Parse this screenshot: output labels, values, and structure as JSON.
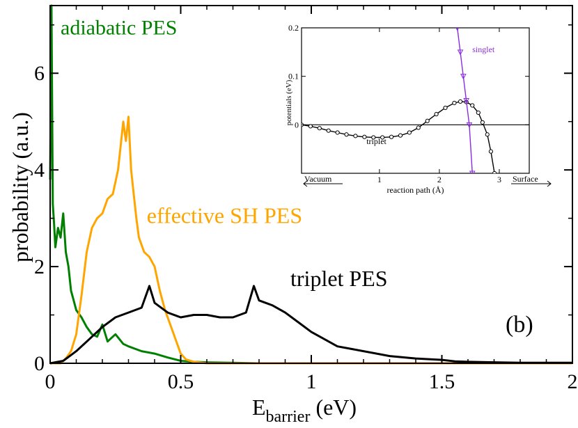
{
  "chart_data": [
    {
      "type": "line",
      "panel_label": "(b)",
      "xlabel_main": "E",
      "xlabel_sub": "barrier",
      "xlabel_unit": "(eV)",
      "ylabel": "probability (a.u.)",
      "xlim": [
        0,
        2
      ],
      "ylim": [
        0,
        7.4
      ],
      "xticks": [
        0,
        0.5,
        1,
        1.5,
        2
      ],
      "xtick_labels": [
        "0",
        "0.5",
        "1",
        "1.5",
        "2"
      ],
      "yticks": [
        0,
        2,
        4,
        6
      ],
      "ytick_labels": [
        "0",
        "2",
        "4",
        "6"
      ],
      "series": [
        {
          "name": "adiabatic PES",
          "color": "#008000",
          "x": [
            0.0,
            0.005,
            0.01,
            0.015,
            0.02,
            0.03,
            0.04,
            0.05,
            0.06,
            0.07,
            0.08,
            0.09,
            0.1,
            0.12,
            0.14,
            0.16,
            0.18,
            0.2,
            0.22,
            0.25,
            0.28,
            0.3,
            0.35,
            0.4,
            0.45,
            0.5,
            0.55,
            0.6,
            0.7,
            0.8,
            1.0,
            1.5,
            2.0
          ],
          "y": [
            3.8,
            7.4,
            3.3,
            2.9,
            2.4,
            2.8,
            2.6,
            3.1,
            2.3,
            2.0,
            1.5,
            1.3,
            1.1,
            0.95,
            0.75,
            0.6,
            0.55,
            0.8,
            0.45,
            0.6,
            0.4,
            0.35,
            0.25,
            0.2,
            0.12,
            0.05,
            0.03,
            0.02,
            0.01,
            0.0,
            0.0,
            0.0,
            0.0
          ]
        },
        {
          "name": "effective SH PES",
          "color": "#ffa500",
          "x": [
            0.0,
            0.04,
            0.06,
            0.08,
            0.1,
            0.12,
            0.14,
            0.16,
            0.18,
            0.2,
            0.22,
            0.24,
            0.26,
            0.27,
            0.28,
            0.29,
            0.3,
            0.31,
            0.32,
            0.33,
            0.34,
            0.36,
            0.38,
            0.4,
            0.42,
            0.44,
            0.46,
            0.48,
            0.5,
            0.52,
            0.55,
            0.6,
            2.0
          ],
          "y": [
            0.0,
            0.0,
            0.1,
            0.25,
            0.6,
            1.4,
            2.3,
            2.8,
            3.0,
            3.1,
            3.4,
            3.5,
            4.0,
            4.5,
            5.0,
            4.6,
            5.1,
            4.0,
            3.5,
            3.0,
            2.6,
            2.3,
            2.2,
            2.0,
            1.5,
            1.1,
            0.8,
            0.5,
            0.2,
            0.08,
            0.03,
            0.0,
            0.0
          ]
        },
        {
          "name": "triplet PES",
          "color": "#000000",
          "x": [
            0.0,
            0.05,
            0.1,
            0.15,
            0.2,
            0.25,
            0.3,
            0.35,
            0.38,
            0.4,
            0.45,
            0.5,
            0.55,
            0.6,
            0.65,
            0.7,
            0.75,
            0.78,
            0.8,
            0.85,
            0.9,
            0.95,
            1.0,
            1.05,
            1.1,
            1.2,
            1.3,
            1.4,
            1.5,
            1.55,
            1.6,
            1.7,
            1.8,
            2.0
          ],
          "y": [
            0.0,
            0.05,
            0.25,
            0.5,
            0.75,
            0.95,
            1.05,
            1.15,
            1.6,
            1.25,
            1.05,
            0.95,
            1.0,
            1.0,
            0.95,
            0.95,
            1.05,
            1.6,
            1.3,
            1.2,
            1.05,
            0.85,
            0.65,
            0.5,
            0.35,
            0.25,
            0.15,
            0.1,
            0.07,
            0.04,
            0.03,
            0.02,
            0.01,
            0.01
          ]
        }
      ],
      "annotations": [
        {
          "text": "adiabatic PES",
          "color": "#008000",
          "x": 0.04,
          "y": 6.8
        },
        {
          "text": "effective SH PES",
          "color": "#ffa500",
          "x": 0.37,
          "y": 2.9
        },
        {
          "text": "triplet PES",
          "color": "#000000",
          "x": 0.92,
          "y": 1.6
        }
      ]
    },
    {
      "type": "line",
      "title": "inset",
      "xlabel": "reaction path (Å)",
      "ylabel": "potentials (eV)",
      "xlim": [
        -0.3,
        3.5
      ],
      "ylim": [
        -0.1,
        0.2
      ],
      "xticks": [
        1,
        2,
        3
      ],
      "xtick_labels": [
        "1",
        "2",
        "3"
      ],
      "yticks": [
        0,
        0.1,
        0.2
      ],
      "ytick_labels": [
        "0",
        "0.1",
        "0.2"
      ],
      "left_arrow_label": "Vacuum",
      "right_arrow_label": "Surface",
      "series": [
        {
          "name": "triplet",
          "color": "#000000",
          "marker": "circle",
          "x": [
            -0.3,
            -0.15,
            0.0,
            0.15,
            0.3,
            0.45,
            0.6,
            0.75,
            0.9,
            1.05,
            1.2,
            1.35,
            1.5,
            1.65,
            1.8,
            1.95,
            2.1,
            2.25,
            2.35,
            2.45,
            2.55,
            2.65,
            2.72,
            2.8,
            2.86,
            2.92
          ],
          "y": [
            0.0,
            -0.003,
            -0.007,
            -0.012,
            -0.016,
            -0.02,
            -0.023,
            -0.025,
            -0.026,
            -0.026,
            -0.025,
            -0.022,
            -0.016,
            -0.006,
            0.008,
            0.022,
            0.035,
            0.045,
            0.048,
            0.047,
            0.04,
            0.025,
            0.005,
            -0.02,
            -0.055,
            -0.1
          ]
        },
        {
          "name": "singlet",
          "color": "#8a2be2",
          "marker": "triangle-down",
          "x": [
            2.3,
            2.35,
            2.4,
            2.45,
            2.5,
            2.55
          ],
          "y": [
            0.2,
            0.15,
            0.1,
            0.05,
            0.0,
            -0.1
          ]
        }
      ],
      "annotations": [
        {
          "text": "triplet",
          "color": "#000000",
          "x": 0.95,
          "y": -0.04
        },
        {
          "text": "singlet",
          "color": "#8a2be2",
          "x": 2.55,
          "y": 0.15
        }
      ]
    }
  ]
}
